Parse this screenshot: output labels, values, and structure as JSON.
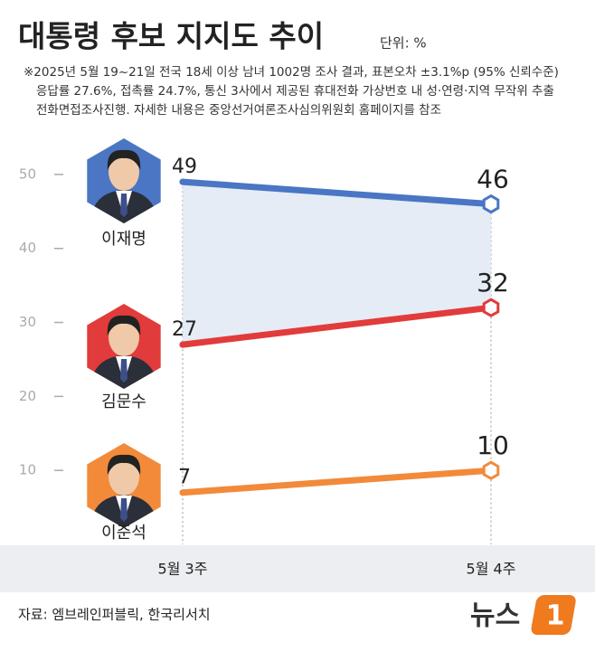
{
  "chart_data": {
    "type": "line",
    "title": "대통령 후보 지지도 추이",
    "unit": "단위: %",
    "notes": [
      "※2025년 5월 19~21일 전국 18세 이상 남녀 1002명 조사 결과, 표본오차 ±3.1%p (95% 신뢰수준)",
      "응답률 27.6%, 접촉률 24.7%, 통신 3사에서 제공된 휴대전화 가상번호 내 성·연령·지역 무작위 추출",
      "전화면접조사진행. 자세한 내용은 중앙선거여론조사심의위원회 홈페이지를 참조"
    ],
    "categories": [
      "5월 3주",
      "5월 4주"
    ],
    "series": [
      {
        "name": "이재명",
        "color": "#4a76c4",
        "values": [
          49,
          46
        ]
      },
      {
        "name": "김문수",
        "color": "#e23b3b",
        "values": [
          27,
          32
        ]
      },
      {
        "name": "이준석",
        "color": "#f28a3a",
        "values": [
          7,
          10
        ]
      }
    ],
    "ylim": [
      0,
      55
    ],
    "yticks": [
      10,
      20,
      30,
      40,
      50
    ],
    "source": "자료: 엠브레인퍼블릭, 한국리서치",
    "logo": {
      "text": "뉴스",
      "mark": "1"
    }
  }
}
